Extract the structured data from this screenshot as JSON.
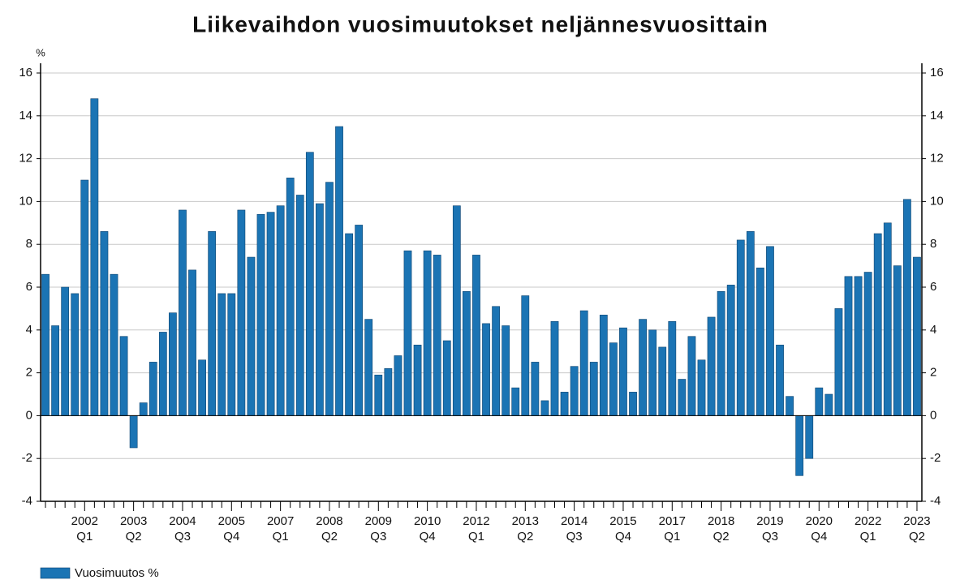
{
  "chart_data": {
    "type": "bar",
    "title": "Liikevaihdon vuosimuutokset neljännesvuosittain",
    "ylabel": "%",
    "categories": [
      null,
      null,
      null,
      null,
      "2002 Q1",
      null,
      null,
      null,
      null,
      "2003 Q2",
      null,
      null,
      null,
      null,
      "2004 Q3",
      null,
      null,
      null,
      null,
      "2005 Q4",
      null,
      null,
      null,
      null,
      "2007 Q1",
      null,
      null,
      null,
      null,
      "2008 Q2",
      null,
      null,
      null,
      null,
      "2009 Q3",
      null,
      null,
      null,
      null,
      "2010 Q4",
      null,
      null,
      null,
      null,
      "2012 Q1",
      null,
      null,
      null,
      null,
      "2013 Q2",
      null,
      null,
      null,
      null,
      "2014 Q3",
      null,
      null,
      null,
      null,
      "2015 Q4",
      null,
      null,
      null,
      null,
      "2017 Q1",
      null,
      null,
      null,
      null,
      "2018 Q2",
      null,
      null,
      null,
      null,
      "2019 Q3",
      null,
      null,
      null,
      null,
      "2020 Q4",
      null,
      null,
      null,
      null,
      "2022 Q1",
      null,
      null,
      null,
      null,
      "2023 Q2"
    ],
    "series": [
      {
        "name": "Vuosimuutos %",
        "color": "#1b74b4",
        "values": [
          6.6,
          4.2,
          6.0,
          5.7,
          11.0,
          14.8,
          8.6,
          6.6,
          3.7,
          -1.5,
          0.6,
          2.5,
          3.9,
          4.8,
          9.6,
          6.8,
          2.6,
          8.6,
          5.7,
          5.7,
          9.6,
          7.4,
          9.4,
          9.5,
          9.8,
          11.1,
          10.3,
          12.3,
          9.9,
          10.9,
          13.5,
          8.5,
          8.9,
          4.5,
          1.9,
          2.2,
          2.8,
          7.7,
          3.3,
          7.7,
          7.5,
          3.5,
          9.8,
          5.8,
          7.5,
          4.3,
          5.1,
          4.2,
          1.3,
          5.6,
          2.5,
          0.7,
          4.4,
          1.1,
          2.3,
          4.9,
          2.5,
          4.7,
          3.4,
          4.1,
          1.1,
          4.5,
          4.0,
          3.2,
          4.4,
          1.7,
          3.7,
          2.6,
          4.6,
          5.8,
          6.1,
          8.2,
          8.6,
          6.9,
          7.9,
          3.3,
          0.9,
          -2.8,
          -2.0,
          1.3,
          1.0,
          5.0,
          6.5,
          6.5,
          6.7,
          8.5,
          9.0,
          7.0,
          10.1,
          7.4
        ]
      }
    ],
    "ylim": [
      -4,
      16
    ],
    "yticks": [
      -4,
      -2,
      0,
      2,
      4,
      6,
      8,
      10,
      12,
      14,
      16
    ],
    "y2lim": [
      -4,
      16
    ],
    "y2ticks": [
      -4,
      -2,
      0,
      2,
      4,
      6,
      8,
      10,
      12,
      14,
      16
    ],
    "grid": true,
    "legend": "bottom-left"
  }
}
